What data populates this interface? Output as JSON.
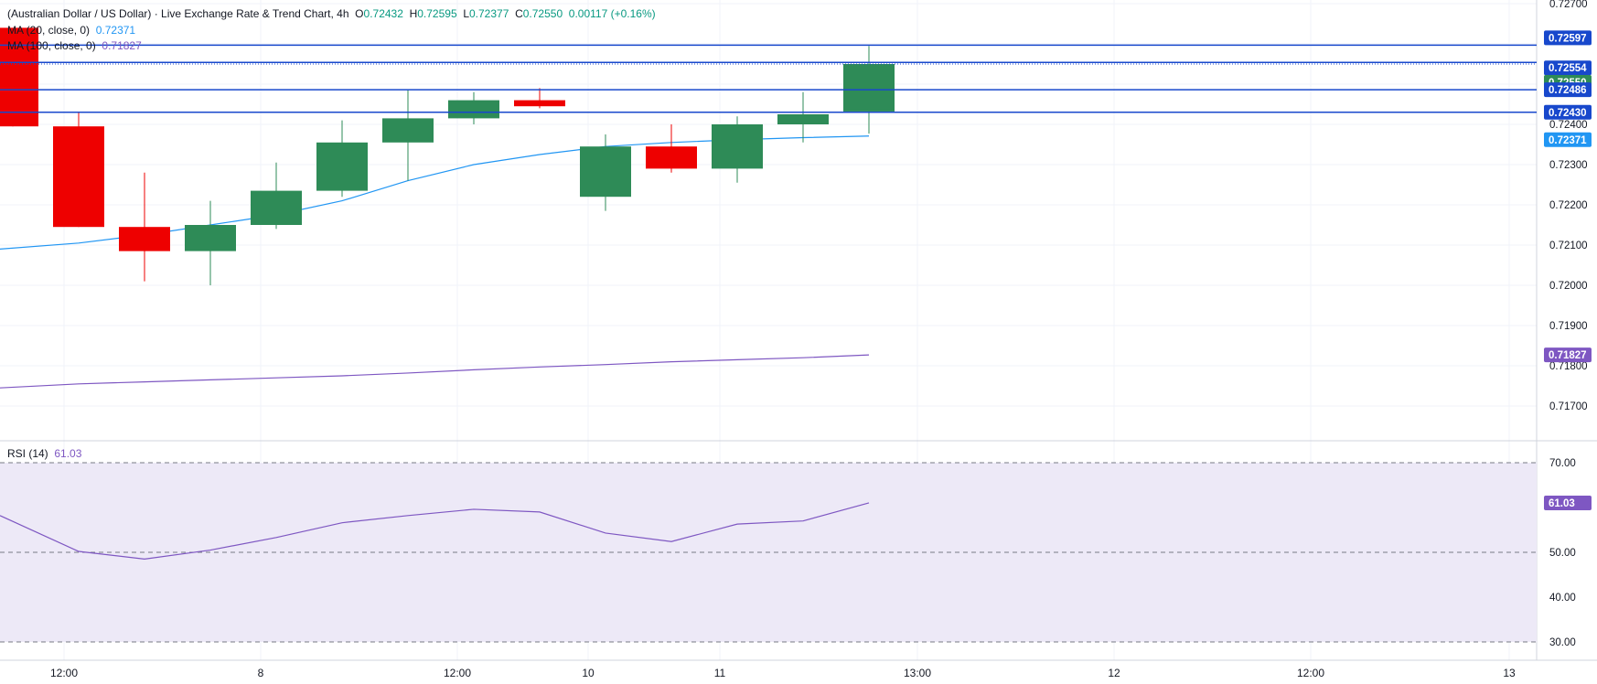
{
  "header": {
    "symbol": "(Australian Dollar / US Dollar) · Live Exchange Rate & Trend Chart, 4h",
    "o_label": "O",
    "o_value": "0.72432",
    "h_label": "H",
    "h_value": "0.72595",
    "l_label": "L",
    "l_value": "0.72377",
    "c_label": "C",
    "c_value": "0.72550",
    "change": "0.00117 (+0.16%)"
  },
  "indicators": {
    "ma20_label": "MA (20, close, 0)",
    "ma20_value": "0.72371",
    "ma100_label": "MA (100, close, 0)",
    "ma100_value": "0.71827",
    "rsi_label": "RSI (14)",
    "rsi_value": "61.03"
  },
  "colors": {
    "up": "#2e8b57",
    "down": "#ee0000",
    "ma20": "#2196f3",
    "ma100": "#7e57c2",
    "level_line": "#1848cc",
    "rsi_band": "#ede9f7",
    "grid": "#f0f3fa",
    "axis_text": "#131722"
  },
  "chart_data": [
    {
      "type": "candlestick",
      "timeframe": "4h",
      "ylim": [
        0.7165,
        0.727
      ],
      "y_ticks": [
        "0.72700",
        "0.72400",
        "0.72300",
        "0.72200",
        "0.72100",
        "0.72000",
        "0.71900",
        "0.71800",
        "0.71700"
      ],
      "x_ticks": [
        "12:00",
        "8",
        "12:00",
        "10",
        "11",
        "13:00",
        "12",
        "12:00",
        "13"
      ],
      "candles": [
        {
          "o": 0.7264,
          "h": 0.7264,
          "l": 0.72395,
          "c": 0.72395
        },
        {
          "o": 0.72395,
          "h": 0.7243,
          "l": 0.72145,
          "c": 0.72145
        },
        {
          "o": 0.72145,
          "h": 0.7228,
          "l": 0.7201,
          "c": 0.72085
        },
        {
          "o": 0.72085,
          "h": 0.7221,
          "l": 0.72,
          "c": 0.7215
        },
        {
          "o": 0.7215,
          "h": 0.72305,
          "l": 0.7214,
          "c": 0.72235
        },
        {
          "o": 0.72235,
          "h": 0.7241,
          "l": 0.7222,
          "c": 0.72355
        },
        {
          "o": 0.72355,
          "h": 0.72485,
          "l": 0.7226,
          "c": 0.72415
        },
        {
          "o": 0.72415,
          "h": 0.7248,
          "l": 0.724,
          "c": 0.7246
        },
        {
          "o": 0.7246,
          "h": 0.7249,
          "l": 0.7244,
          "c": 0.72445
        },
        {
          "o": 0.7222,
          "h": 0.72375,
          "l": 0.72185,
          "c": 0.72345
        },
        {
          "o": 0.72345,
          "h": 0.724,
          "l": 0.7228,
          "c": 0.7229
        },
        {
          "o": 0.7229,
          "h": 0.7242,
          "l": 0.72255,
          "c": 0.724
        },
        {
          "o": 0.724,
          "h": 0.7248,
          "l": 0.72355,
          "c": 0.72425
        },
        {
          "o": 0.72432,
          "h": 0.72595,
          "l": 0.72377,
          "c": 0.7255
        }
      ],
      "ma20": [
        0.7209,
        0.72105,
        0.72125,
        0.7215,
        0.72175,
        0.7221,
        0.7226,
        0.723,
        0.72325,
        0.72345,
        0.72355,
        0.72362,
        0.72367,
        0.72371
      ],
      "ma100": [
        0.71745,
        0.71755,
        0.7176,
        0.71765,
        0.7177,
        0.71775,
        0.71782,
        0.7179,
        0.71797,
        0.71803,
        0.7181,
        0.71815,
        0.7182,
        0.71827
      ],
      "levels": [
        {
          "value": 0.72597,
          "label": "0.72597",
          "style": "solid"
        },
        {
          "value": 0.72554,
          "label": "0.72554",
          "style": "solid"
        },
        {
          "value": 0.7255,
          "label": "0.72550",
          "style": "dotted"
        },
        {
          "value": 0.72486,
          "label": "0.72486",
          "style": "solid"
        },
        {
          "value": 0.7243,
          "label": "0.72430",
          "style": "solid"
        }
      ],
      "price_tags": [
        {
          "value": 0.72371,
          "label": "0.72371",
          "series": "ma20"
        },
        {
          "value": 0.71827,
          "label": "0.71827",
          "series": "ma100"
        }
      ]
    },
    {
      "type": "line",
      "name": "RSI (14)",
      "ylim": [
        28,
        72
      ],
      "y_ticks": [
        "70.00",
        "50.00",
        "40.00",
        "30.00"
      ],
      "bands": [
        70,
        50,
        30
      ],
      "values": [
        58.2,
        50.2,
        48.5,
        50.5,
        53.3,
        56.6,
        58.2,
        59.6,
        59.0,
        54.3,
        52.4,
        56.3,
        57.0,
        61.03
      ],
      "last_label": "61.03"
    }
  ]
}
